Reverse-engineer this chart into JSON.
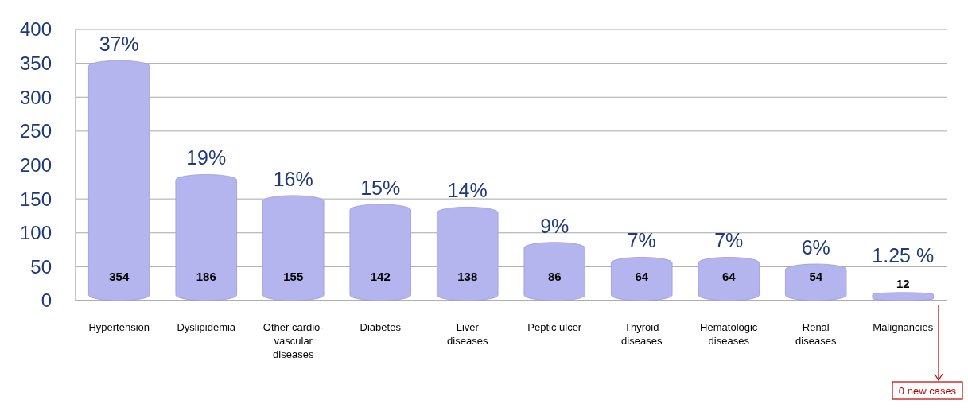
{
  "chart_data": {
    "type": "bar",
    "categories": [
      "Hypertension",
      "Dyslipidemia",
      "Other cardio-vascular diseases",
      "Diabetes",
      "Liver diseases",
      "Peptic ulcer",
      "Thyroid diseases",
      "Hematologic diseases",
      "Renal diseases",
      "Malignancies"
    ],
    "values": [
      354,
      186,
      155,
      142,
      138,
      86,
      64,
      64,
      54,
      12
    ],
    "color": "#b4b4ee",
    "ylim": [
      0,
      400
    ],
    "yticks": [
      0,
      50,
      100,
      150,
      200,
      250,
      300,
      350,
      400
    ],
    "grid": "y",
    "data_labels": true,
    "annotations": [
      {
        "text": "37%",
        "x": "Hypertension",
        "y": 354
      },
      {
        "text": "19%",
        "x": "Dyslipidemia",
        "y": 186
      },
      {
        "text": "16%",
        "x": "Other cardio-vascular diseases",
        "y": 155
      },
      {
        "text": "15%",
        "x": "Diabetes",
        "y": 142
      },
      {
        "text": "14%",
        "x": "Liver diseases",
        "y": 138
      },
      {
        "text": "9%",
        "x": "Peptic ulcer",
        "y": 86
      },
      {
        "text": "7%",
        "x": "Thyroid diseases",
        "y": 64
      },
      {
        "text": "7%",
        "x": "Hematologic diseases",
        "y": 64
      },
      {
        "text": "6%",
        "x": "Renal diseases",
        "y": 54
      },
      {
        "text": "1.25 %",
        "x": "Malignancies",
        "y": 12
      },
      "0 new cases"
    ]
  }
}
